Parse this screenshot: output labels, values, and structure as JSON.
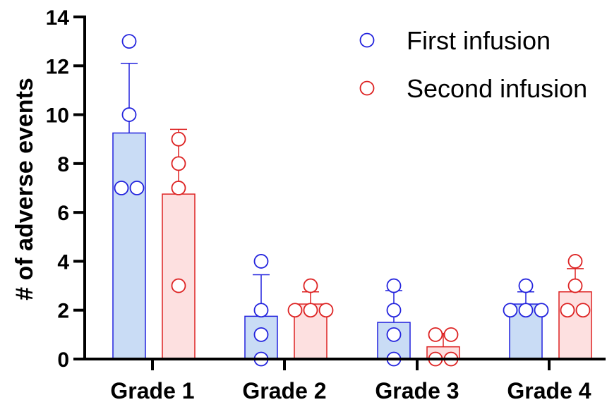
{
  "chart_data": {
    "type": "bar",
    "ylabel": "# of adverse events",
    "xlabel": "",
    "ylim": [
      0,
      14
    ],
    "yticks": [
      0,
      2,
      4,
      6,
      8,
      10,
      12,
      14
    ],
    "categories": [
      "Grade 1",
      "Grade 2",
      "Grade 3",
      "Grade 4"
    ],
    "legend_position": "top-right",
    "grid": false,
    "series": [
      {
        "name": "First infusion",
        "edge_color": "#2222dd",
        "fill_color": "#c9dcf5",
        "values": [
          9.25,
          1.75,
          1.5,
          2.25
        ],
        "error_upper": [
          12.1,
          3.45,
          2.8,
          2.75
        ],
        "points": [
          [
            13,
            10,
            7,
            7
          ],
          [
            4,
            2,
            1,
            0
          ],
          [
            3,
            2,
            1,
            0
          ],
          [
            3,
            2,
            2,
            2
          ]
        ]
      },
      {
        "name": "Second infusion",
        "edge_color": "#dd2222",
        "fill_color": "#fde0e0",
        "values": [
          6.75,
          2.25,
          0.5,
          2.75
        ],
        "error_upper": [
          9.4,
          2.75,
          1.05,
          3.7
        ],
        "points": [
          [
            9,
            8,
            7,
            3
          ],
          [
            3,
            2,
            2,
            2
          ],
          [
            1,
            1,
            0,
            0
          ],
          [
            4,
            3,
            2,
            2
          ]
        ]
      }
    ]
  }
}
